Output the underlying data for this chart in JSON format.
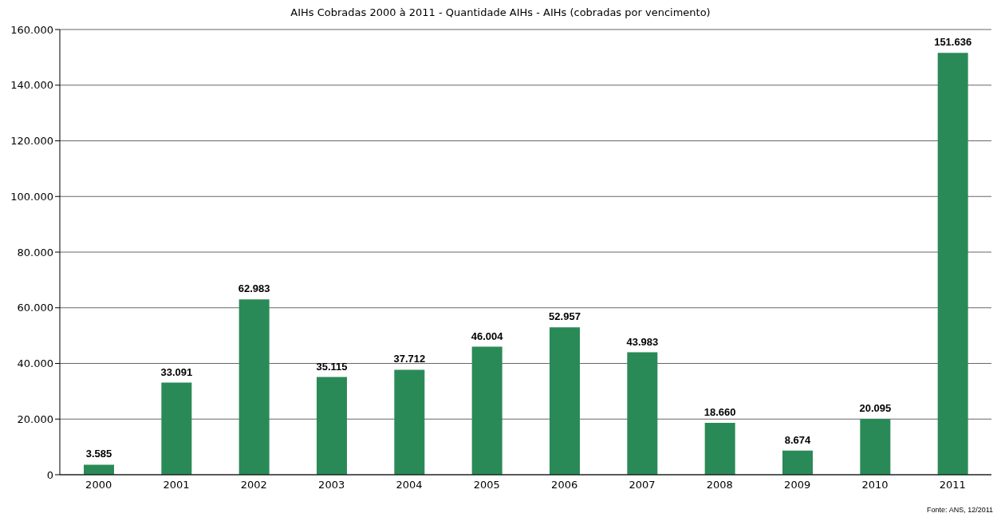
{
  "chart_data": {
    "type": "bar",
    "title": "AIHs Cobradas 2000 à 2011 - Quantidade AIHs - AIHs (cobradas por vencimento)",
    "categories": [
      "2000",
      "2001",
      "2002",
      "2003",
      "2004",
      "2005",
      "2006",
      "2007",
      "2008",
      "2009",
      "2010",
      "2011"
    ],
    "values": [
      3585,
      33091,
      62983,
      35115,
      37712,
      46004,
      52957,
      43983,
      18660,
      8674,
      20095,
      151636
    ],
    "value_labels": [
      "3.585",
      "33.091",
      "62.983",
      "35.115",
      "37.712",
      "46.004",
      "52.957",
      "43.983",
      "18.660",
      "8.674",
      "20.095",
      "151.636"
    ],
    "color": "#2a8a57",
    "ylim": [
      0,
      160000
    ],
    "yticks": [
      0,
      {
        "value": 20000,
        "label": "20.000"
      },
      {
        "value": 40000,
        "label": "40.000"
      },
      {
        "value": 60000,
        "label": "60.000"
      },
      {
        "value": 80000,
        "label": "80.000"
      },
      {
        "value": 100000,
        "label": "100.000"
      },
      {
        "value": 120000,
        "label": "120.000"
      },
      {
        "value": 140000,
        "label": "140.000"
      },
      {
        "value": 160000,
        "label": "160.000"
      }
    ],
    "grid": "y",
    "legend": false,
    "annotations": [
      "Fonte: ANS, 12/2011"
    ]
  }
}
